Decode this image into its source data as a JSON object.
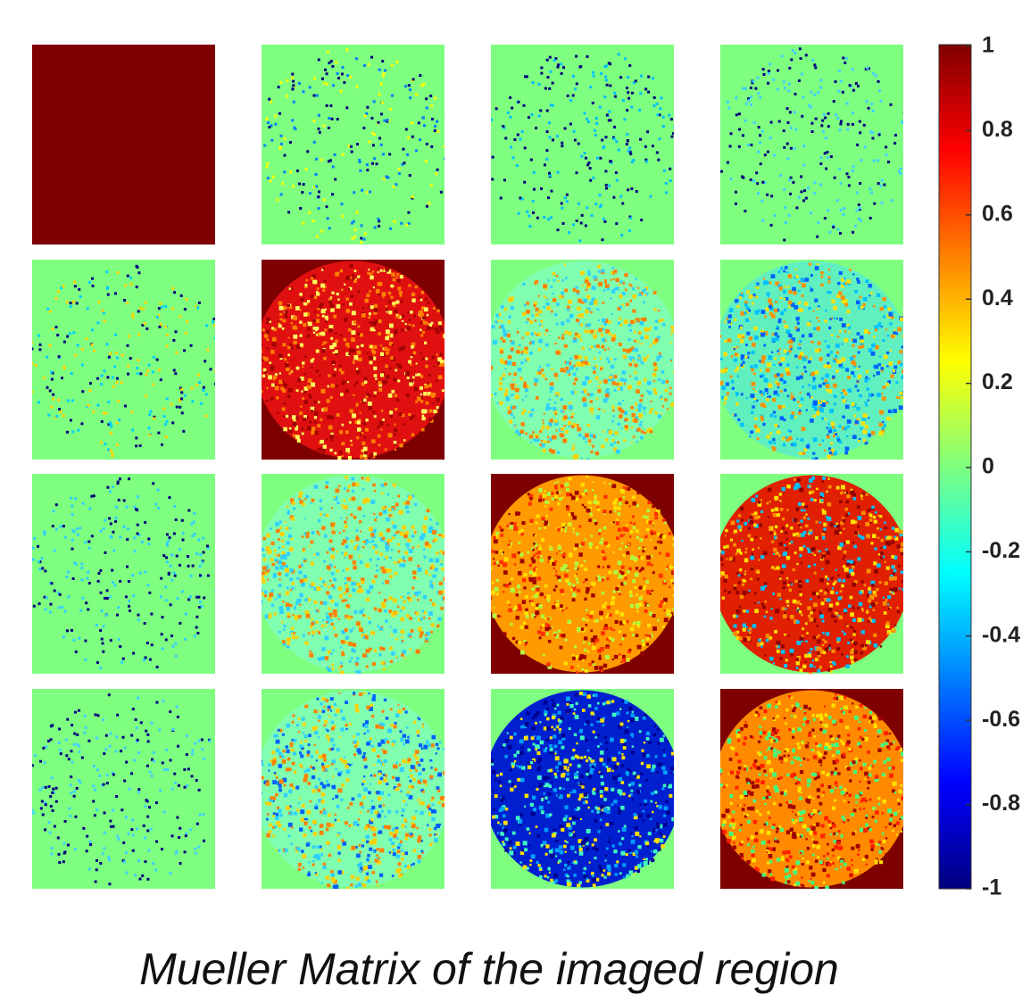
{
  "figure": {
    "caption": "Mueller Matrix of the imaged region",
    "colorbar": {
      "lim": [
        -1,
        1
      ],
      "ticks": [
        1,
        0.8,
        0.6,
        0.4,
        0.2,
        0,
        -0.2,
        -0.4,
        -0.6,
        -0.8,
        -1
      ]
    }
  }
}
